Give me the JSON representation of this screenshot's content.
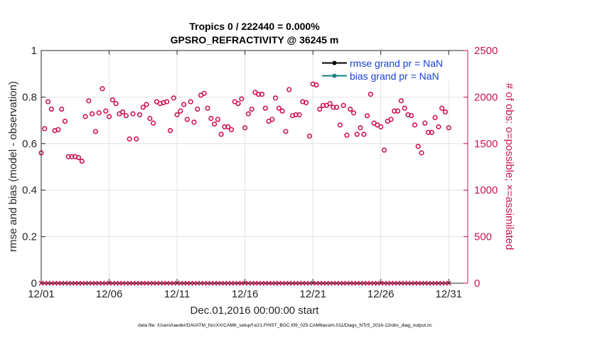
{
  "chart_data": {
    "type": "scatter",
    "title": "Tropics 0 / 222440 = 0.000%",
    "subtitle": "GPSRO_REFRACTIVITY @ 36245 m",
    "xlabel": "Dec.01,2016 00:00:00 start",
    "ylabel_left": "rmse and bias (model - observation)",
    "ylabel_right": "# of obs: o=possible; ×=assimilated",
    "footer": "data file: /Users/raeder/DAI/ATM_forcXX/CAM6_setup/f.e21.FHIST_BGC.f09_025.CAM6assim.011/Diags_NTrS_2016-12/obs_diag_output.nc",
    "xlim": [
      0,
      31.4
    ],
    "ylim_left": [
      0,
      1
    ],
    "ylim_right": [
      0,
      2500
    ],
    "x_ticks": [
      0,
      5,
      10,
      15,
      20,
      25,
      30
    ],
    "x_tick_labels": [
      "12/01",
      "12/06",
      "12/11",
      "12/16",
      "12/21",
      "12/26",
      "12/31"
    ],
    "y_ticks_left": [
      0,
      0.2,
      0.4,
      0.6,
      0.8,
      1
    ],
    "y_tick_labels_left": [
      "0",
      "0.2",
      "0.4",
      "0.6",
      "0.8",
      "1"
    ],
    "y_ticks_right": [
      0,
      500,
      1000,
      1500,
      2000,
      2500
    ],
    "y_tick_labels_right": [
      "0",
      "500",
      "1000",
      "1500",
      "2000",
      "2500"
    ],
    "grid": true,
    "legend": {
      "placement": "top-right",
      "entries": [
        {
          "label": "rmse grand pr = NaN",
          "color": "#000000"
        },
        {
          "label": "bias grand pr = NaN",
          "color": "#128080"
        }
      ]
    },
    "colors": {
      "obs": "#cc1155",
      "rmse": "#000000",
      "bias": "#128080",
      "legend_text": "#1a3fd6"
    },
    "series": [
      {
        "name": "possible",
        "marker": "o",
        "x_step": 0.25,
        "values": [
          1400,
          1660,
          1950,
          1870,
          1640,
          1650,
          1870,
          1740,
          1360,
          1360,
          1360,
          1350,
          1310,
          1790,
          1960,
          1820,
          1630,
          1830,
          2090,
          1850,
          1790,
          1970,
          1930,
          1820,
          1840,
          1800,
          1550,
          1820,
          1550,
          1810,
          1890,
          1920,
          1770,
          1720,
          1950,
          1930,
          1940,
          1950,
          1640,
          1990,
          1810,
          1850,
          1920,
          1760,
          1950,
          1730,
          1870,
          2020,
          2040,
          1880,
          1770,
          1710,
          1760,
          1600,
          1680,
          1680,
          1650,
          1950,
          1930,
          1980,
          1670,
          1820,
          1870,
          2050,
          2030,
          2030,
          1880,
          1740,
          1760,
          1990,
          1880,
          1850,
          1630,
          2080,
          1800,
          1810,
          1810,
          1950,
          1940,
          1580,
          2140,
          2130,
          1870,
          1910,
          1910,
          1930,
          1890,
          1890,
          1700,
          1910,
          1590,
          1870,
          1830,
          1600,
          1670,
          1600,
          1800,
          2030,
          1720,
          1700,
          1680,
          1430,
          1740,
          1760,
          1850,
          1850,
          1960,
          1880,
          1810,
          1800,
          1700,
          1470,
          1400,
          1720,
          1620,
          1620,
          1780,
          1680,
          1880,
          1840,
          1670
        ]
      },
      {
        "name": "assimilated",
        "marker": "x",
        "x_step": 0.25,
        "constant_value": 0
      }
    ]
  }
}
